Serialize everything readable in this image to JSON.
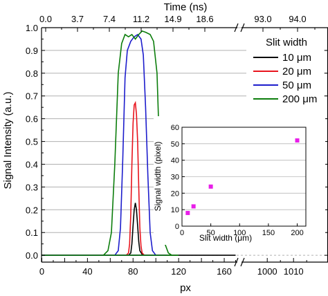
{
  "chart_data": [
    {
      "type": "line",
      "xlabel": "px",
      "ylabel": "Signal Intensity (a.u.)",
      "top_axis_label": "Time (ns)",
      "top_axis_ticks": [
        "0.0",
        "3.7",
        "7.4",
        "11.2",
        "14.9",
        "18.6",
        "93.0",
        "94.0"
      ],
      "x_ticks_left": [
        "0",
        "20",
        "40",
        "60",
        "80",
        "100",
        "120",
        "140",
        "160"
      ],
      "x_ticks_right": [
        "1000",
        "1010"
      ],
      "xlim_left": [
        0,
        170
      ],
      "xlim_right": [
        991,
        1017
      ],
      "ylim": [
        -0.03,
        1.0
      ],
      "y_ticks": [
        "0.0",
        "0.1",
        "0.2",
        "0.3",
        "0.4",
        "0.5",
        "0.6",
        "0.7",
        "0.8",
        "0.9",
        "1.0"
      ],
      "grid": "horizontal",
      "axis_break": true,
      "legend_title": "Slit width",
      "legend_position": "top-right",
      "series": [
        {
          "name": "10 μm",
          "color": "#000000",
          "x": [
            0,
            70,
            76,
            78,
            79,
            80,
            81,
            82,
            83,
            84,
            85,
            86,
            88,
            90,
            110,
            170,
            180,
            190,
            200
          ],
          "y": [
            0,
            0,
            0,
            0.01,
            0.05,
            0.13,
            0.2,
            0.23,
            0.2,
            0.13,
            0.06,
            0.02,
            0.004,
            0,
            0,
            0,
            0.004,
            0,
            0
          ]
        },
        {
          "name": "20 μm",
          "color": "#e8131c",
          "x": [
            0,
            74,
            76,
            77,
            78,
            79,
            80,
            81,
            82,
            83,
            84,
            85,
            86,
            87,
            88,
            90,
            110,
            200
          ],
          "y": [
            0,
            0,
            0.01,
            0.05,
            0.18,
            0.4,
            0.58,
            0.66,
            0.67,
            0.62,
            0.5,
            0.3,
            0.12,
            0.04,
            0.01,
            0,
            0,
            0
          ]
        },
        {
          "name": "50 μm",
          "color": "#1c1ccc",
          "x": [
            0,
            64,
            67,
            69,
            71,
            73,
            75,
            78,
            81,
            84,
            87,
            89,
            91,
            93,
            95,
            97,
            100,
            110,
            200
          ],
          "y": [
            0,
            0,
            0.02,
            0.12,
            0.42,
            0.78,
            0.9,
            0.94,
            0.96,
            0.97,
            0.95,
            0.88,
            0.65,
            0.35,
            0.1,
            0.02,
            0,
            0,
            0
          ]
        },
        {
          "name": "200 μm",
          "color": "#0b7d0b",
          "x": [
            0,
            54,
            58,
            61,
            64,
            67,
            70,
            73,
            76,
            79,
            82,
            85,
            88,
            91,
            95,
            98,
            101,
            103,
            105,
            108,
            111,
            114,
            120,
            200
          ],
          "y": [
            0,
            0,
            0.02,
            0.1,
            0.4,
            0.8,
            0.93,
            0.97,
            0.96,
            0.97,
            0.95,
            0.97,
            0.985,
            0.98,
            0.97,
            0.94,
            0.8,
            0.5,
            0.2,
            0.05,
            0.01,
            0,
            0,
            0
          ]
        }
      ]
    },
    {
      "type": "scatter",
      "xlabel": "Slit width (μm)",
      "ylabel": "Signal width (pixel)",
      "xlim": [
        0,
        215
      ],
      "ylim": [
        0,
        60
      ],
      "x_ticks": [
        "0",
        "50",
        "100",
        "150",
        "200"
      ],
      "y_ticks": [
        "0",
        "10",
        "20",
        "30",
        "40",
        "50",
        "60"
      ],
      "grid": "horizontal",
      "marker_color": "#e81ee8",
      "x": [
        10,
        20,
        50,
        200
      ],
      "y": [
        8,
        12,
        24,
        52
      ]
    }
  ]
}
